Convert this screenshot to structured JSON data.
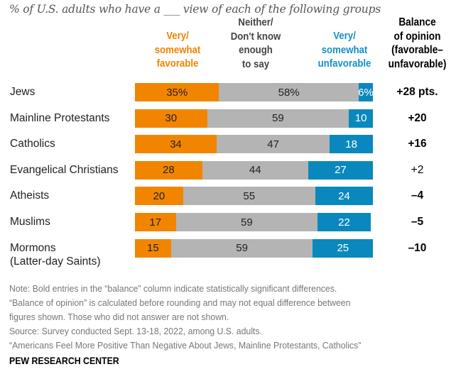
{
  "chart_data": {
    "type": "bar",
    "orientation": "horizontal-stacked",
    "title": "% of U.S. adults who have a ___ view of each of the following groups",
    "categories": [
      "Jews",
      "Mainline Protestants",
      "Catholics",
      "Evangelical Christians",
      "Atheists",
      "Muslims",
      "Mormons\n(Latter-day Saints)"
    ],
    "series": [
      {
        "name": "Very/\nsomewhat\nfavorable",
        "color": "#f28500",
        "values": [
          35,
          30,
          34,
          28,
          20,
          17,
          15
        ],
        "labels": [
          "35%",
          "30",
          "34",
          "28",
          "20",
          "17",
          "15"
        ]
      },
      {
        "name": "Neither/\nDon't know\nenough\nto say",
        "color": "#b4b4b4",
        "values": [
          58,
          59,
          47,
          44,
          55,
          59,
          59
        ],
        "labels": [
          "58%",
          "59",
          "47",
          "44",
          "55",
          "59",
          "59"
        ]
      },
      {
        "name": "Very/\nsomewhat\nunfavorable",
        "color": "#0a88be",
        "values": [
          6,
          10,
          18,
          27,
          24,
          22,
          25
        ],
        "labels": [
          "6%",
          "10",
          "18",
          "27",
          "24",
          "22",
          "25"
        ]
      }
    ],
    "balance": {
      "header": "Balance\nof opinion\n(favorable–\nunfavorable)",
      "values": [
        "+28 pts.",
        "+20",
        "+16",
        "+2",
        "–4",
        "–5",
        "–10"
      ],
      "significant": [
        true,
        true,
        true,
        false,
        true,
        true,
        true
      ]
    },
    "xlim": [
      0,
      100
    ],
    "grid": false,
    "legend": "top (column headers)"
  },
  "notes": [
    "Note: Bold entries in the “balance” column indicate statistically significant differences.",
    "“Balance of opinion” is calculated before rounding and may not equal difference between",
    "figures shown. Those who did not answer are not shown.",
    "Source: Survey conducted Sept. 13-18, 2022, among U.S. adults.",
    "“Americans Feel More Positive Than Negative About Jews, Mainline Protestants, Catholics”"
  ],
  "brand": "PEW RESEARCH CENTER"
}
